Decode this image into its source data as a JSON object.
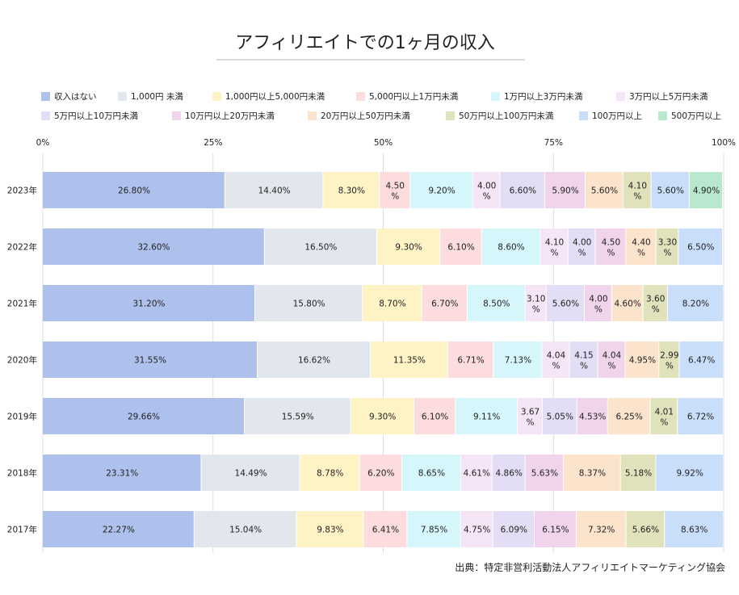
{
  "chart_data": {
    "type": "bar",
    "orientation": "horizontal",
    "stacked": true,
    "title": "アフィリエイトでの1ヶ月の収入",
    "source": "出典：特定非営利活動法人アフィリエイトマーケティング協会",
    "x_ticks": [
      "0%",
      "25%",
      "50%",
      "75%",
      "100%"
    ],
    "xlim": [
      0,
      100
    ],
    "grid": true,
    "legend_position": "top",
    "categories": [
      "2023年",
      "2022年",
      "2021年",
      "2020年",
      "2019年",
      "2018年",
      "2017年"
    ],
    "series": [
      {
        "name": "収入はない",
        "color": "#aec0ec",
        "values": [
          26.8,
          32.6,
          31.2,
          31.55,
          29.66,
          23.31,
          22.27
        ],
        "labels": [
          "26.80%",
          "32.60%",
          "31.20%",
          "31.55%",
          "29.66%",
          "23.31%",
          "22.27%"
        ]
      },
      {
        "name": "1,000円 未満",
        "color": "#e2e7ee",
        "values": [
          14.4,
          16.5,
          15.8,
          16.62,
          15.59,
          14.49,
          15.04
        ],
        "labels": [
          "14.40%",
          "16.50%",
          "15.80%",
          "16.62%",
          "15.59%",
          "14.49%",
          "15.04%"
        ]
      },
      {
        "name": "1,000円以上5,000円未満",
        "color": "#fdf3c4",
        "values": [
          8.3,
          9.3,
          8.7,
          11.35,
          9.3,
          8.78,
          9.83
        ],
        "labels": [
          "8.30%",
          "9.30%",
          "8.70%",
          "11.35%",
          "9.30%",
          "8.78%",
          "9.83%"
        ]
      },
      {
        "name": "5,000円以上1万円未満",
        "color": "#fcdcdc",
        "values": [
          4.5,
          6.1,
          6.7,
          6.71,
          6.1,
          6.2,
          6.41
        ],
        "labels": [
          "4.50%",
          "6.10%",
          "6.70%",
          "6.71%",
          "6.10%",
          "6.20%",
          "6.41%"
        ]
      },
      {
        "name": "1万円以上3万円未満",
        "color": "#d5f6fb",
        "values": [
          9.2,
          8.6,
          8.5,
          7.13,
          9.11,
          8.65,
          7.85
        ],
        "labels": [
          "9.20%",
          "8.60%",
          "8.50%",
          "7.13%",
          "9.11%",
          "8.65%",
          "7.85%"
        ]
      },
      {
        "name": "3万円以上5万円未満",
        "color": "#f5e5f7",
        "values": [
          4.0,
          4.1,
          3.1,
          4.04,
          3.67,
          4.61,
          4.75
        ],
        "labels": [
          "4.00%",
          "4.10%",
          "3.10%",
          "4.04%",
          "3.67%",
          "4.61%",
          "4.75%"
        ]
      },
      {
        "name": "5万円以上10万円未満",
        "color": "#e3ddf5",
        "values": [
          6.6,
          4.0,
          5.6,
          4.15,
          5.05,
          4.86,
          6.09
        ],
        "labels": [
          "6.60%",
          "4.00%",
          "5.60%",
          "4.15%",
          "5.05%",
          "4.86%",
          "6.09%"
        ]
      },
      {
        "name": "10万円以上20万円未満",
        "color": "#f0d4ec",
        "values": [
          5.9,
          4.5,
          4.0,
          4.04,
          4.53,
          5.63,
          6.15
        ],
        "labels": [
          "5.90%",
          "4.50%",
          "4.00%",
          "4.04%",
          "4.53%",
          "5.63%",
          "6.15%"
        ]
      },
      {
        "name": "20万円以上50万円未満",
        "color": "#fbe3cc",
        "values": [
          5.6,
          4.4,
          4.6,
          4.95,
          6.25,
          8.37,
          7.32
        ],
        "labels": [
          "5.60%",
          "4.40%",
          "4.60%",
          "4.95%",
          "6.25%",
          "8.37%",
          "7.32%"
        ]
      },
      {
        "name": "50万円以上100万円未満",
        "color": "#dfe2bb",
        "values": [
          4.1,
          3.3,
          3.6,
          2.99,
          4.01,
          5.18,
          5.66
        ],
        "labels": [
          "4.10%",
          "3.30%",
          "3.60%",
          "2.99%",
          "4.01%",
          "5.18%",
          "5.66%"
        ]
      },
      {
        "name": "100万円以上",
        "color": "#c8defb",
        "values": [
          5.6,
          6.5,
          8.2,
          6.47,
          6.72,
          9.92,
          8.63
        ],
        "labels": [
          "5.60%",
          "6.50%",
          "8.20%",
          "6.47%",
          "6.72%",
          "9.92%",
          "8.63%"
        ]
      },
      {
        "name": "500万円以上",
        "color": "#b8e8ce",
        "values": [
          4.9,
          0,
          0,
          0,
          0,
          0,
          0
        ],
        "labels": [
          "4.90%",
          "",
          "",
          "",
          "",
          "",
          ""
        ]
      }
    ]
  }
}
